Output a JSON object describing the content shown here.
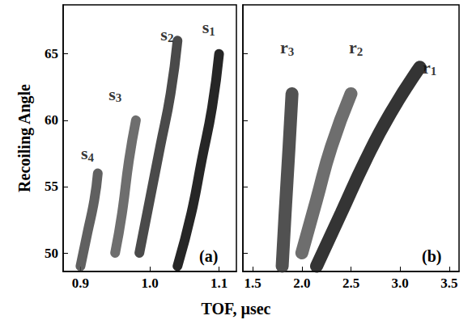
{
  "chart_data": {
    "type": "line",
    "xlabel": "TOF, µsec",
    "ylabel": "Recoiling Angle",
    "panels": [
      {
        "panel_label": "(a)",
        "xlim": [
          0.875,
          1.125
        ],
        "xticks": [
          0.9,
          {
            "value": 1,
            "label": "1.0"
          },
          1.1
        ],
        "ylim": [
          48.6,
          68.7
        ],
        "yticks": [
          50,
          55,
          60,
          65
        ],
        "series": [
          {
            "name": "s1",
            "color": "#000000",
            "x": [
              1.04,
              1.06,
              1.075,
              1.09,
              1.1
            ],
            "values": [
              49,
              53,
              57,
              61,
              65
            ]
          },
          {
            "name": "s2",
            "color": "#2a2a2a",
            "x": [
              0.985,
              1.0,
              1.015,
              1.03,
              1.04
            ],
            "values": [
              50,
              54,
              58,
              62,
              66
            ]
          },
          {
            "name": "s3",
            "color": "#555555",
            "x": [
              0.95,
              0.96,
              0.97,
              0.98
            ],
            "values": [
              50,
              53,
              57,
              60
            ]
          },
          {
            "name": "s4",
            "color": "#444444",
            "x": [
              0.9,
              0.91,
              0.92,
              0.925
            ],
            "values": [
              49,
              51.5,
              54,
              56
            ]
          }
        ],
        "annotations": [
          {
            "text": "s1",
            "x": 1.085,
            "y": 67
          },
          {
            "text": "s2",
            "x": 1.025,
            "y": 66.5
          },
          {
            "text": "s3",
            "x": 0.95,
            "y": 62
          },
          {
            "text": "s4",
            "x": 0.91,
            "y": 57.5
          }
        ]
      },
      {
        "panel_label": "(b)",
        "tick_labels": "x",
        "xlim": [
          1.4,
          3.6
        ],
        "xticks": [
          1.5,
          {
            "value": 2,
            "label": "2.0"
          },
          2.5,
          {
            "value": 3,
            "label": "3.0"
          },
          3.5
        ],
        "ylim": [
          48.6,
          68.7
        ],
        "yticks": [
          50,
          55,
          60,
          65
        ],
        "series": [
          {
            "name": "r1",
            "color": "#111111",
            "x": [
              2.15,
              2.4,
              2.65,
              2.9,
              3.2
            ],
            "values": [
              49,
              53,
              57,
              60.5,
              64
            ]
          },
          {
            "name": "r2",
            "color": "#555555",
            "x": [
              2.0,
              2.15,
              2.3,
              2.5
            ],
            "values": [
              50,
              54,
              58,
              62
            ]
          },
          {
            "name": "r3",
            "color": "#333333",
            "x": [
              1.8,
              1.83,
              1.87,
              1.9
            ],
            "values": [
              49,
              53,
              58,
              62
            ]
          }
        ],
        "annotations": [
          {
            "text": "r1",
            "x": 3.3,
            "y": 64
          },
          {
            "text": "r2",
            "x": 2.55,
            "y": 65.5
          },
          {
            "text": "r3",
            "x": 1.85,
            "y": 65.5
          }
        ]
      }
    ]
  }
}
